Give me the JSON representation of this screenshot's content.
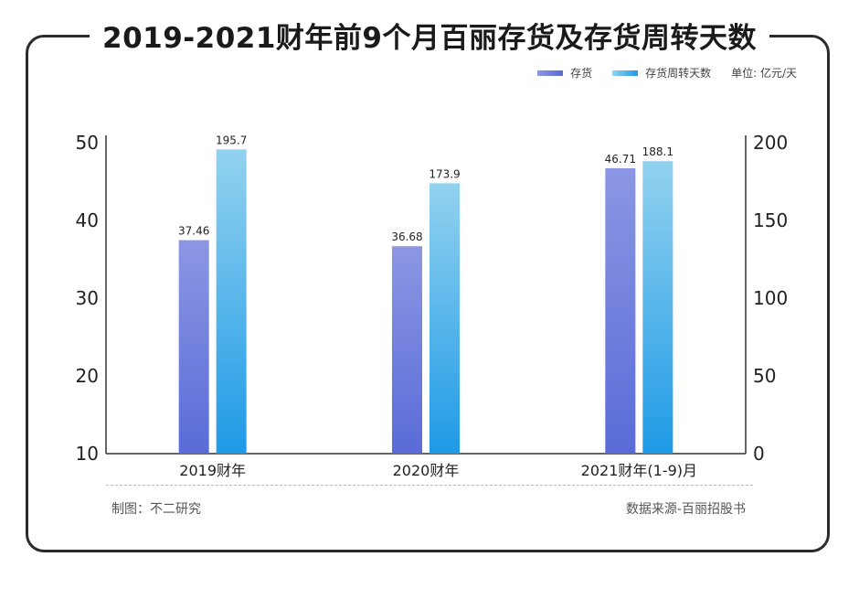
{
  "title": "2019-2021财年前9个月百丽存货及存货周转天数",
  "legend": {
    "series1": "存货",
    "series2": "存货周转天数",
    "unit": "单位: 亿元/天"
  },
  "footer": {
    "left": "制图：不二研究",
    "right": "数据来源-百丽招股书"
  },
  "colors": {
    "inventory_top": "#8b97e3",
    "inventory_bottom": "#5a6bd8",
    "days_top": "#92d2ef",
    "days_bottom": "#1f9ae6"
  },
  "chart_data": {
    "type": "bar",
    "categories": [
      "2019财年",
      "2020财年",
      "2021财年(1-9)月"
    ],
    "series": [
      {
        "name": "存货",
        "axis": "left",
        "values": [
          37.46,
          36.68,
          46.71
        ],
        "labels": [
          "37.46",
          "36.68",
          "46.71"
        ]
      },
      {
        "name": "存货周转天数",
        "axis": "right",
        "values": [
          195.7,
          173.9,
          188.1
        ],
        "labels": [
          "195.7",
          "173.9",
          "188.1"
        ]
      }
    ],
    "y_left": {
      "range": [
        10,
        50
      ],
      "ticks": [
        "10",
        "20",
        "30",
        "40",
        "50"
      ]
    },
    "y_right": {
      "range": [
        0,
        200
      ],
      "ticks": [
        "0",
        "50",
        "100",
        "150",
        "200"
      ]
    },
    "grid": false,
    "legend_position": "top-right"
  }
}
